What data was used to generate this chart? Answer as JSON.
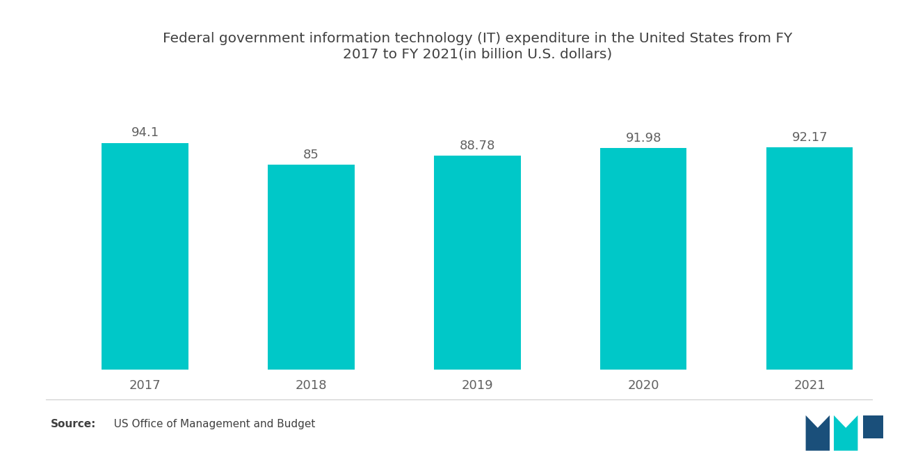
{
  "title": "Federal government information technology (IT) expenditure in the United States from FY\n2017 to FY 2021(in billion U.S. dollars)",
  "categories": [
    "2017",
    "2018",
    "2019",
    "2020",
    "2021"
  ],
  "values": [
    94.1,
    85,
    88.78,
    91.98,
    92.17
  ],
  "bar_color": "#00C8C8",
  "value_labels": [
    "94.1",
    "85",
    "88.78",
    "91.98",
    "92.17"
  ],
  "background_color": "#ffffff",
  "title_color": "#404040",
  "label_color": "#606060",
  "title_fontsize": 14.5,
  "label_fontsize": 13,
  "value_fontsize": 13,
  "ylim": [
    0,
    115
  ],
  "bar_width": 0.52,
  "source_bold": "Source:",
  "source_normal": "   US Office of Management and Budget"
}
